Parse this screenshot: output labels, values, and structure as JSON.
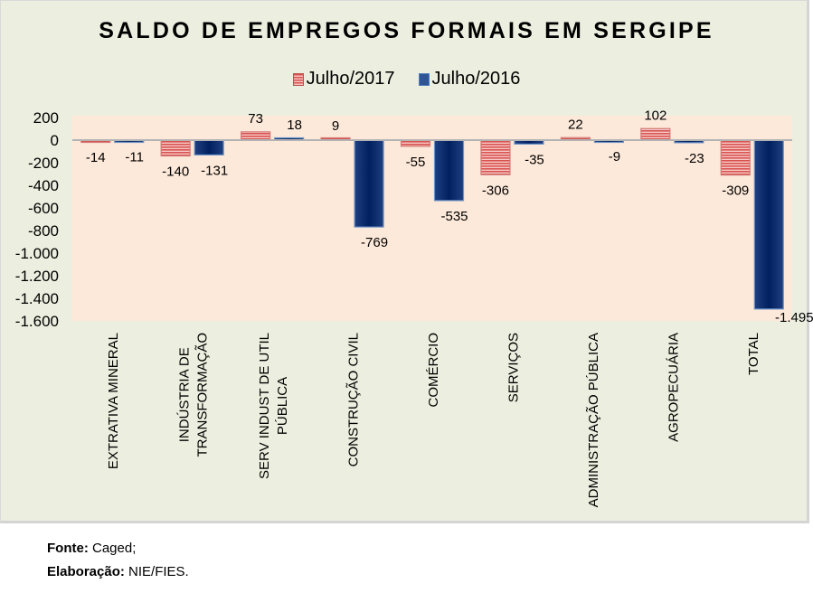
{
  "chart_data": {
    "type": "bar",
    "title": "SALDO DE EMPREGOS FORMAIS EM SERGIPE",
    "xlabel": "",
    "ylabel": "",
    "ylim": [
      -1600,
      200
    ],
    "yticks": [
      200,
      0,
      -200,
      -400,
      -600,
      -800,
      -1000,
      -1200,
      -1400,
      -1600
    ],
    "ytick_labels": [
      "200",
      "0",
      "-200",
      "-400",
      "-600",
      "-800",
      "-1.000",
      "-1.200",
      "-1.400",
      "-1.600"
    ],
    "grid": false,
    "legend_position": "top-center",
    "categories": [
      [
        "EXTRATIVA MINERAL"
      ],
      [
        "INDÚSTRIA DE",
        "TRANSFORMAÇÃO"
      ],
      [
        "SERV INDUST DE UTIL",
        "PÚBLICA"
      ],
      [
        "CONSTRUÇÃO CIVIL"
      ],
      [
        "COMÉRCIO"
      ],
      [
        "SERVIÇOS"
      ],
      [
        "ADMINISTRAÇÃO PÚBLICA"
      ],
      [
        "AGROPECUÁRIA"
      ],
      [
        "TOTAL"
      ]
    ],
    "series": [
      {
        "name": "Julho/2017",
        "color": "#c0504d",
        "pattern": "horizontal-stripes",
        "values": [
          -14,
          -140,
          73,
          9,
          -55,
          -306,
          22,
          102,
          -309
        ],
        "labels": [
          "-14",
          "-140",
          "73",
          "9",
          "-55",
          "-306",
          "22",
          "102",
          "-309"
        ]
      },
      {
        "name": "Julho/2016",
        "color": "#002060",
        "pattern": "solid",
        "values": [
          -11,
          -131,
          18,
          -769,
          -535,
          -35,
          -9,
          -23,
          -1495
        ],
        "labels": [
          "-11",
          "-131",
          "18",
          "-769",
          "-535",
          "-35",
          "-9",
          "-23",
          "-1.495"
        ]
      }
    ]
  },
  "legend": {
    "items": [
      {
        "label": "Julho/2017"
      },
      {
        "label": "Julho/2016"
      }
    ]
  },
  "footer": {
    "source_label": "Fonte:",
    "source_value": "Caged;",
    "credit_label": "Elaboração:",
    "credit_value": "NIE/FIES."
  }
}
